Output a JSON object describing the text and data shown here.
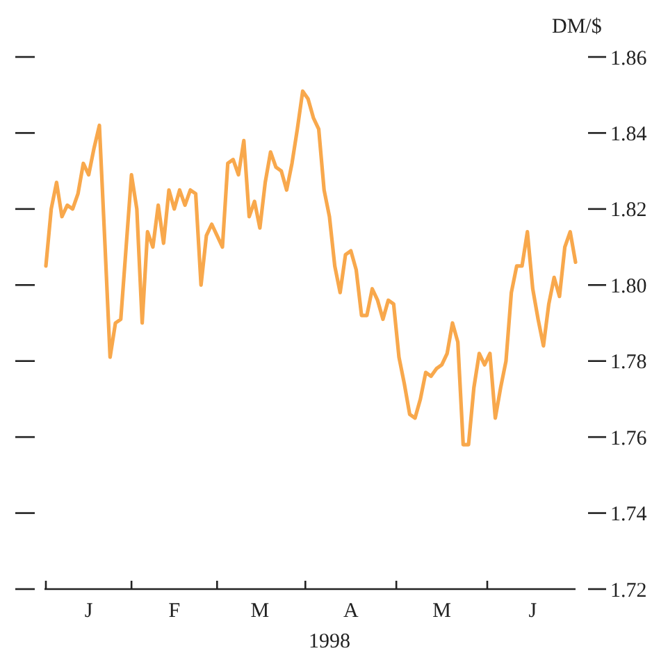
{
  "chart_data": {
    "type": "line",
    "xlabel": "1998",
    "ylabel": "DM/$",
    "categories": [
      null,
      null,
      null,
      null,
      null,
      null,
      null,
      null,
      "J",
      null,
      null,
      null,
      null,
      null,
      null,
      null,
      null,
      null,
      null,
      null,
      null,
      null,
      null,
      null,
      "F",
      null,
      null,
      null,
      null,
      null,
      null,
      null,
      null,
      null,
      null,
      null,
      null,
      null,
      null,
      null,
      "M",
      null,
      null,
      null,
      null,
      null,
      null,
      null,
      null,
      null,
      null,
      null,
      null,
      null,
      null,
      null,
      null,
      "A",
      null,
      null,
      null,
      null,
      null,
      null,
      null,
      null,
      null,
      null,
      null,
      null,
      null,
      null,
      null,
      null,
      "M",
      null,
      null,
      null,
      null,
      null,
      null,
      null,
      null,
      null,
      null,
      null,
      null,
      null,
      null,
      null,
      null,
      "J",
      null,
      null,
      null,
      null,
      null,
      null,
      null,
      null
    ],
    "ylim": [
      1.72,
      1.86
    ],
    "yticks": [
      1.72,
      1.74,
      1.76,
      1.78,
      {
        "value": 1.8,
        "label": "1.80"
      },
      1.82,
      1.84,
      1.86
    ],
    "grid": false,
    "marker": "none",
    "line_style": "solid",
    "series": [
      {
        "color": "#f8a84c",
        "values": [
          1.805,
          1.82,
          1.827,
          1.818,
          1.821,
          1.82,
          1.824,
          1.832,
          1.829,
          1.836,
          1.842,
          1.812,
          1.781,
          1.79,
          1.791,
          1.81,
          1.829,
          1.82,
          1.79,
          1.814,
          1.81,
          1.821,
          1.811,
          1.825,
          1.82,
          1.825,
          1.821,
          1.825,
          1.824,
          1.8,
          1.813,
          1.816,
          1.813,
          1.81,
          1.832,
          1.833,
          1.829,
          1.838,
          1.818,
          1.822,
          1.815,
          1.827,
          1.835,
          1.831,
          1.83,
          1.825,
          1.832,
          1.841,
          1.851,
          1.849,
          1.844,
          1.841,
          1.825,
          1.818,
          1.805,
          1.798,
          1.808,
          1.809,
          1.804,
          1.792,
          1.792,
          1.799,
          1.796,
          1.791,
          1.796,
          1.795,
          1.781,
          1.774,
          1.766,
          1.765,
          1.77,
          1.777,
          1.776,
          1.778,
          1.779,
          1.782,
          1.79,
          1.785,
          1.758,
          1.758,
          1.773,
          1.782,
          1.779,
          1.782,
          1.765,
          1.773,
          1.78,
          1.798,
          1.805,
          1.805,
          1.814,
          1.799,
          1.791,
          1.784,
          1.795,
          1.802,
          1.797,
          1.81,
          1.814,
          1.806
        ]
      }
    ]
  }
}
